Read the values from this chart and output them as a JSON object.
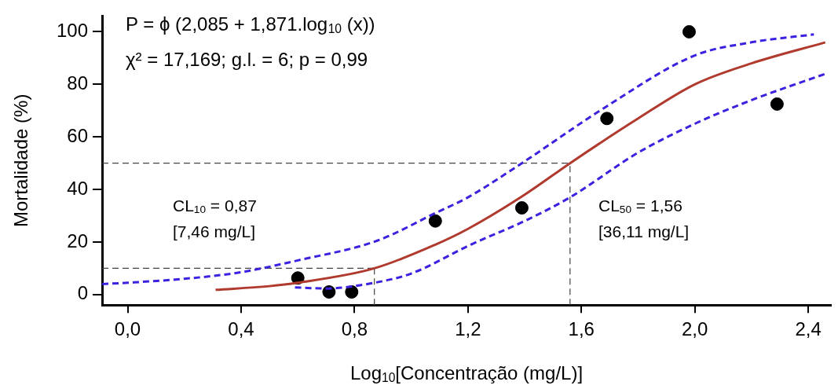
{
  "chart_data": {
    "type": "scatter",
    "xlabel": "Log$_{10}$[Concentração (mg/L)]",
    "ylabel": "Mortalidade (%)",
    "annotations": [
      "P = ϕ (2,085 + 1,871.log$_{10}$ (x))",
      "χ² = 17,169; g.l. = 6; p = 0,99",
      "CL$_{10}$ = 0,87",
      "[7,46 mg/L]",
      "CL$_{50}$ = 1,56",
      "[36,11 mg/L]"
    ],
    "xlim": [
      -0.09,
      2.48
    ],
    "ylim": [
      -4,
      106
    ],
    "xticks": [
      {
        "value": 0,
        "label": "0,0"
      },
      {
        "value": 0.4,
        "label": "0,4"
      },
      {
        "value": 0.8,
        "label": "0,8"
      },
      {
        "value": 1.2,
        "label": "1,2"
      },
      {
        "value": 1.6,
        "label": "1,6"
      },
      {
        "value": 2.0,
        "label": "2,0"
      },
      {
        "value": 2.4,
        "label": "2,4"
      }
    ],
    "yticks": [
      0,
      20,
      40,
      60,
      80,
      100
    ],
    "ref_lines": [
      {
        "axis": "y",
        "value": 10,
        "color": "#444444",
        "line_style": "dashed"
      },
      {
        "axis": "y",
        "value": 50,
        "color": "#444444",
        "line_style": "dashed"
      },
      {
        "axis": "x",
        "value": 0.87,
        "color": "#444444",
        "line_style": "dashed"
      },
      {
        "axis": "x",
        "value": 1.56,
        "color": "#444444",
        "line_style": "dashed"
      }
    ],
    "series": [
      {
        "type": "line",
        "marker": "none",
        "color": "#3a22e0",
        "line_style": "dashed",
        "x": [
          -0.09,
          0.0,
          0.2,
          0.4,
          0.6,
          0.88,
          1.085,
          1.2,
          1.39,
          1.68,
          2.0,
          2.2,
          2.42
        ],
        "values": [
          4,
          4.5,
          6,
          8.5,
          13,
          20.5,
          31,
          37,
          50,
          71,
          91,
          96,
          99
        ]
      },
      {
        "type": "line",
        "marker": "none",
        "color": "#3a22e0",
        "line_style": "dashed",
        "x": [
          0.59,
          0.7,
          0.87,
          1.0,
          1.21,
          1.4,
          1.56,
          1.8,
          2.0,
          2.2,
          2.46
        ],
        "values": [
          2.7,
          2.3,
          4.5,
          8,
          19,
          28,
          37,
          54,
          65,
          74,
          84
        ]
      },
      {
        "type": "line",
        "marker": "none",
        "color": "#b03a2e",
        "line_style": "solid",
        "x": [
          0.31,
          0.5,
          0.6,
          0.87,
          1.085,
          1.2,
          1.4,
          1.56,
          1.8,
          2.0,
          2.2,
          2.46
        ],
        "values": [
          1.8,
          3.2,
          4.5,
          10,
          19,
          25,
          38,
          50,
          67,
          80,
          88,
          96
        ]
      },
      {
        "marker": "circle",
        "color": "#000000",
        "x": [
          0.6,
          0.71,
          0.79,
          1.085,
          1.39,
          1.69,
          1.98,
          2.29
        ],
        "values": [
          6.3,
          1,
          1,
          28,
          33,
          67,
          100,
          72.5
        ]
      }
    ]
  }
}
